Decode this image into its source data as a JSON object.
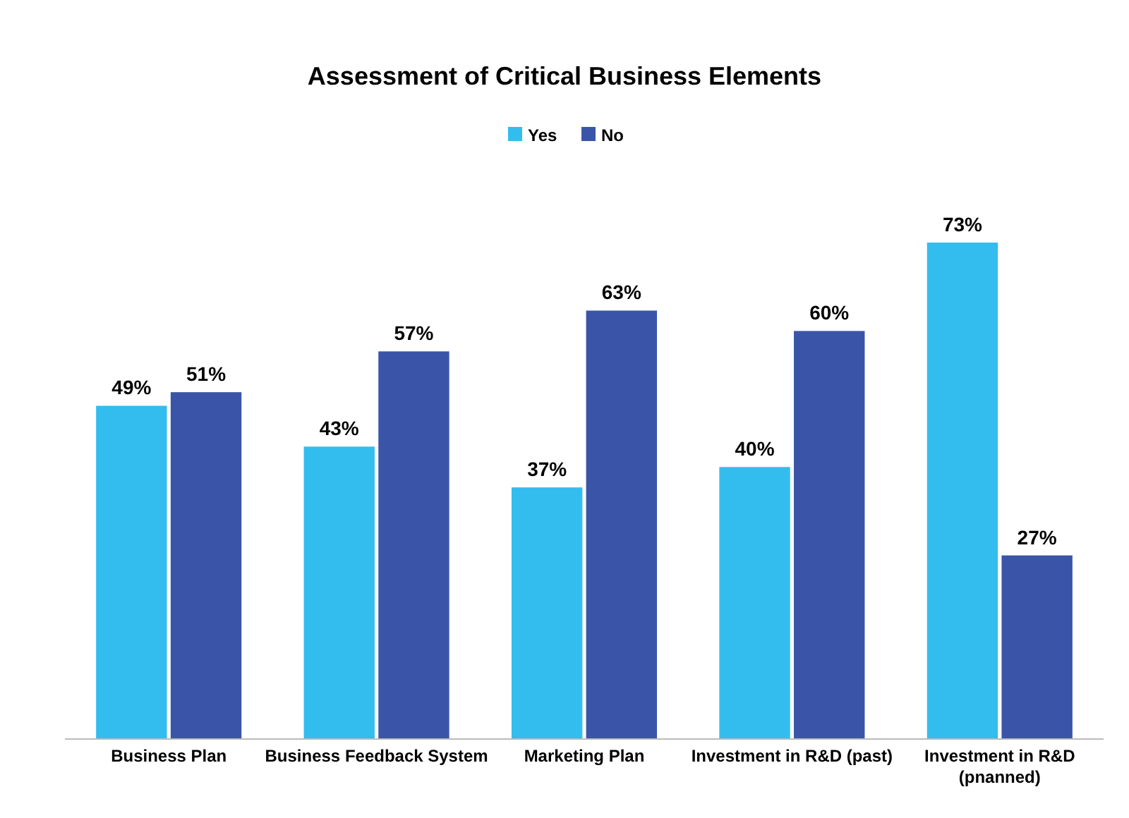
{
  "chart_data": {
    "type": "bar",
    "title": "Assessment of Critical Business Elements",
    "categories": [
      "Business Plan",
      "Business Feedback System",
      "Marketing Plan",
      "Investment in R&D (past)",
      "Investment in R&D (pnanned)"
    ],
    "series": [
      {
        "name": "Yes",
        "color": "#33bdee",
        "values": [
          49,
          43,
          37,
          40,
          73
        ],
        "value_labels": [
          "49%",
          "43%",
          "37%",
          "40%",
          "73%"
        ]
      },
      {
        "name": "No",
        "color": "#3a55a8",
        "values": [
          51,
          57,
          63,
          60,
          27
        ],
        "value_labels": [
          "51%",
          "57%",
          "63%",
          "60%",
          "27%"
        ]
      }
    ],
    "legend": "top",
    "grid": false
  }
}
